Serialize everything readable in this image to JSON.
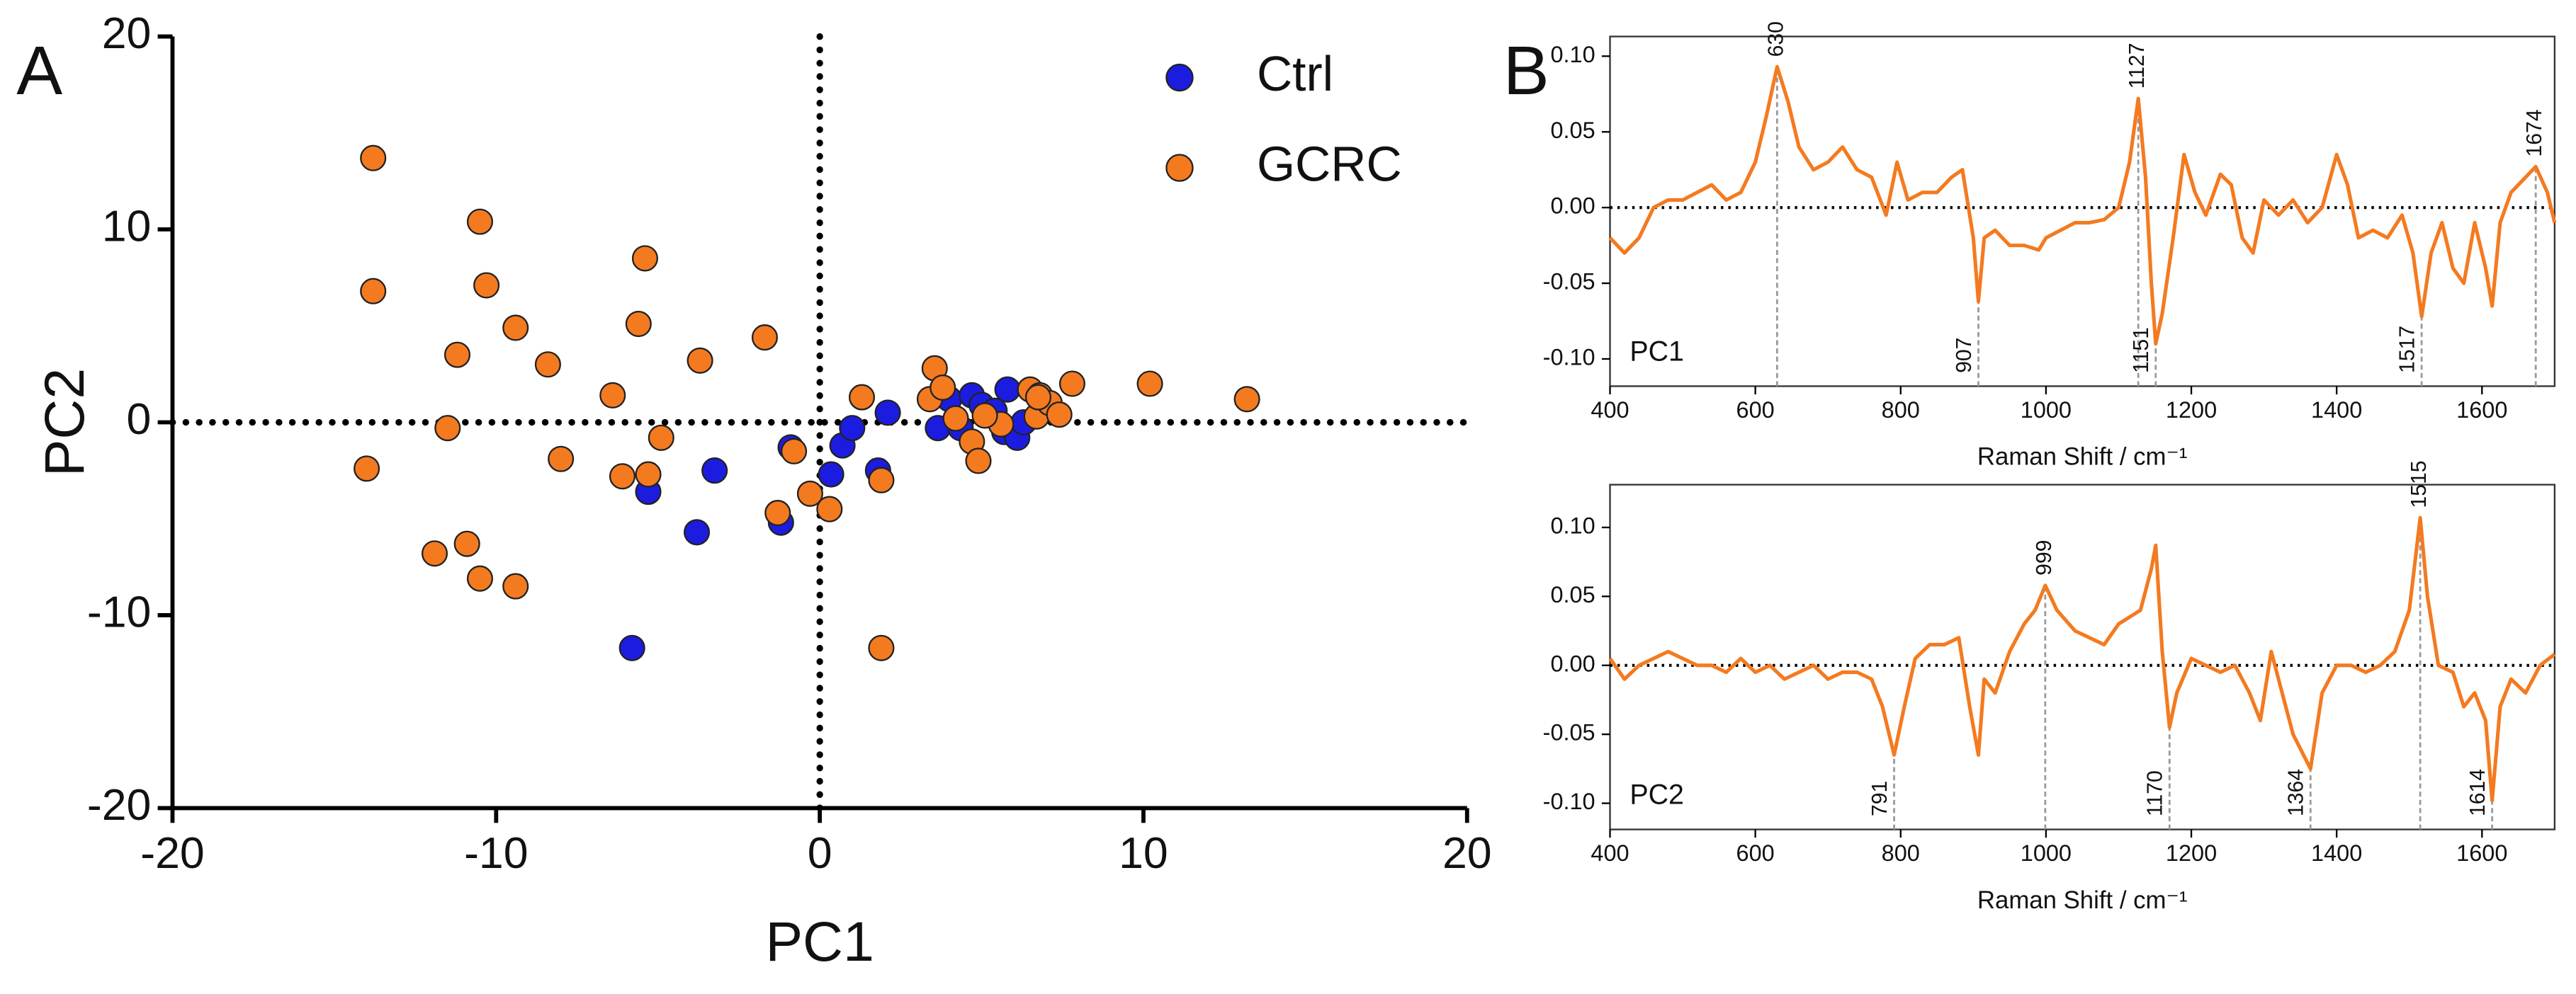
{
  "chart_data": [
    {
      "type": "scatter",
      "panel": "A",
      "xlabel": "PC1",
      "ylabel": "PC2",
      "xlim": [
        -20,
        20
      ],
      "ylim": [
        -20,
        20
      ],
      "xticks": [
        -20,
        -10,
        0,
        10,
        20
      ],
      "yticks": [
        -20,
        -10,
        0,
        10,
        20
      ],
      "legend": "upper right",
      "series": [
        {
          "name": "Ctrl",
          "color": "#1c1ce0",
          "x": [
            -5.3,
            -3.25,
            -3.8,
            -1.2,
            -0.9,
            -5.8,
            0.35,
            0.7,
            1.0,
            2.1,
            1.8,
            3.65,
            4.0,
            4.35,
            4.7,
            5.0,
            5.4,
            5.7,
            5.8,
            6.1,
            6.3
          ],
          "values": [
            -3.6,
            -2.5,
            -5.7,
            -5.2,
            -1.3,
            -11.7,
            -2.7,
            -1.2,
            -0.3,
            0.5,
            -2.5,
            -0.3,
            1.2,
            -0.3,
            1.4,
            0.9,
            0.6,
            -0.5,
            1.7,
            -0.8,
            0
          ]
        },
        {
          "name": "GCRC",
          "color": "#f47a20",
          "x": [
            -13.8,
            -13.8,
            -14,
            -11.9,
            -10.9,
            -10.5,
            -9.4,
            -11.2,
            -11.5,
            -10.5,
            -10.3,
            -9.4,
            -8.4,
            -8.0,
            -6.4,
            -6.1,
            -5.6,
            -5.4,
            -5.3,
            -4.9,
            -3.7,
            -1.7,
            -1.3,
            -0.8,
            -0.3,
            0.3,
            1.3,
            1.9,
            1.9,
            3.55,
            3.4,
            3.8,
            4.2,
            4.7,
            4.9,
            5.6,
            6.5,
            6.7,
            6.8,
            7.1,
            7.4,
            7.8,
            10.2,
            13.2,
            6.75,
            5.1
          ],
          "values": [
            13.7,
            6.8,
            -2.4,
            -6.8,
            -6.3,
            -8.1,
            -8.5,
            3.5,
            -0.3,
            10.4,
            7.1,
            4.9,
            3.0,
            -1.9,
            1.4,
            -2.8,
            5.1,
            8.5,
            -2.7,
            -0.8,
            3.2,
            4.4,
            -4.7,
            -1.5,
            -3.7,
            -4.5,
            1.3,
            -3.0,
            -11.7,
            2.8,
            1.2,
            1.8,
            0.2,
            -1.0,
            -2.0,
            -0.1,
            1.7,
            0.3,
            1.4,
            1.0,
            0.4,
            2.0,
            2.0,
            1.2,
            1.3,
            0.35
          ]
        }
      ]
    },
    {
      "type": "line",
      "panel": "B",
      "label": "PC1",
      "xlabel": "Raman Shift / cm⁻¹",
      "xlim": [
        400,
        1700
      ],
      "ylim": [
        -0.118,
        0.113
      ],
      "xticks": [
        400,
        600,
        800,
        1000,
        1200,
        1400,
        1600
      ],
      "yticks": [
        {
          "value": 0.1,
          "label": "0.10"
        },
        0.05,
        {
          "value": 0,
          "label": "0.00"
        },
        -0.05,
        {
          "value": -0.1,
          "label": "-0.10"
        }
      ],
      "zero_line": true,
      "peaks": [
        630,
        907,
        1127,
        1151,
        1517,
        1674
      ],
      "x": [
        400,
        420,
        440,
        460,
        480,
        500,
        520,
        540,
        560,
        580,
        600,
        615,
        630,
        645,
        660,
        680,
        700,
        720,
        740,
        760,
        780,
        795,
        810,
        830,
        850,
        870,
        885,
        900,
        907,
        915,
        930,
        950,
        970,
        990,
        1000,
        1020,
        1040,
        1060,
        1080,
        1100,
        1115,
        1127,
        1137,
        1145,
        1151,
        1160,
        1175,
        1190,
        1205,
        1220,
        1240,
        1255,
        1270,
        1285,
        1300,
        1320,
        1340,
        1360,
        1380,
        1400,
        1415,
        1430,
        1450,
        1470,
        1490,
        1505,
        1517,
        1530,
        1545,
        1560,
        1575,
        1590,
        1605,
        1614,
        1625,
        1640,
        1660,
        1674,
        1690,
        1700
      ],
      "series": [
        {
          "color": "#f47a20",
          "values": [
            -0.02,
            -0.03,
            -0.02,
            0.0,
            0.005,
            0.005,
            0.01,
            0.015,
            0.005,
            0.01,
            0.03,
            0.06,
            0.093,
            0.07,
            0.04,
            0.025,
            0.03,
            0.04,
            0.025,
            0.02,
            -0.005,
            0.03,
            0.005,
            0.01,
            0.01,
            0.02,
            0.025,
            -0.02,
            -0.062,
            -0.02,
            -0.015,
            -0.025,
            -0.025,
            -0.028,
            -0.02,
            -0.015,
            -0.01,
            -0.01,
            -0.008,
            0.0,
            0.03,
            0.072,
            0.02,
            -0.05,
            -0.09,
            -0.07,
            -0.02,
            0.035,
            0.01,
            -0.005,
            0.022,
            0.015,
            -0.02,
            -0.03,
            0.005,
            -0.005,
            0.005,
            -0.01,
            0.0,
            0.035,
            0.015,
            -0.02,
            -0.015,
            -0.02,
            -0.005,
            -0.03,
            -0.072,
            -0.03,
            -0.01,
            -0.04,
            -0.05,
            -0.01,
            -0.04,
            -0.065,
            -0.01,
            0.01,
            0.02,
            0.027,
            0.01,
            -0.01
          ]
        }
      ]
    },
    {
      "type": "line",
      "label": "PC2",
      "xlabel": "Raman Shift / cm⁻¹",
      "xlim": [
        400,
        1700
      ],
      "ylim": [
        -0.119,
        0.131
      ],
      "xticks": [
        400,
        600,
        800,
        1000,
        1200,
        1400,
        1600
      ],
      "yticks": [
        {
          "value": 0.1,
          "label": "0.10"
        },
        0.05,
        {
          "value": 0,
          "label": "0.00"
        },
        -0.05,
        {
          "value": -0.1,
          "label": "-0.10"
        }
      ],
      "zero_line": true,
      "peaks": [
        791,
        999,
        1170,
        1364,
        1515,
        1614
      ],
      "x": [
        400,
        420,
        440,
        460,
        480,
        500,
        520,
        540,
        560,
        580,
        600,
        620,
        640,
        660,
        680,
        700,
        720,
        740,
        760,
        775,
        791,
        805,
        820,
        840,
        860,
        880,
        895,
        907,
        915,
        930,
        950,
        970,
        985,
        999,
        1015,
        1040,
        1060,
        1080,
        1100,
        1115,
        1130,
        1145,
        1151,
        1160,
        1170,
        1180,
        1200,
        1220,
        1240,
        1260,
        1280,
        1295,
        1310,
        1325,
        1340,
        1364,
        1380,
        1400,
        1420,
        1440,
        1460,
        1480,
        1500,
        1515,
        1525,
        1540,
        1560,
        1575,
        1590,
        1605,
        1614,
        1625,
        1640,
        1660,
        1680,
        1700
      ],
      "series": [
        {
          "color": "#f47a20",
          "values": [
            0.005,
            -0.01,
            0.0,
            0.005,
            0.01,
            0.005,
            0.0,
            0.0,
            -0.005,
            0.005,
            -0.005,
            0.0,
            -0.01,
            -0.005,
            0.0,
            -0.01,
            -0.005,
            -0.005,
            -0.01,
            -0.03,
            -0.065,
            -0.03,
            0.005,
            0.015,
            0.015,
            0.02,
            -0.03,
            -0.065,
            -0.01,
            -0.02,
            0.01,
            0.03,
            0.04,
            0.058,
            0.04,
            0.025,
            0.02,
            0.015,
            0.03,
            0.035,
            0.04,
            0.07,
            0.087,
            0.01,
            -0.045,
            -0.02,
            0.005,
            0.0,
            -0.005,
            0.0,
            -0.02,
            -0.04,
            0.01,
            -0.02,
            -0.05,
            -0.075,
            -0.02,
            0.0,
            0.0,
            -0.005,
            0.0,
            0.01,
            0.04,
            0.107,
            0.05,
            0.0,
            -0.005,
            -0.03,
            -0.02,
            -0.04,
            -0.098,
            -0.03,
            -0.01,
            -0.02,
            0.0,
            0.008
          ]
        }
      ]
    }
  ]
}
